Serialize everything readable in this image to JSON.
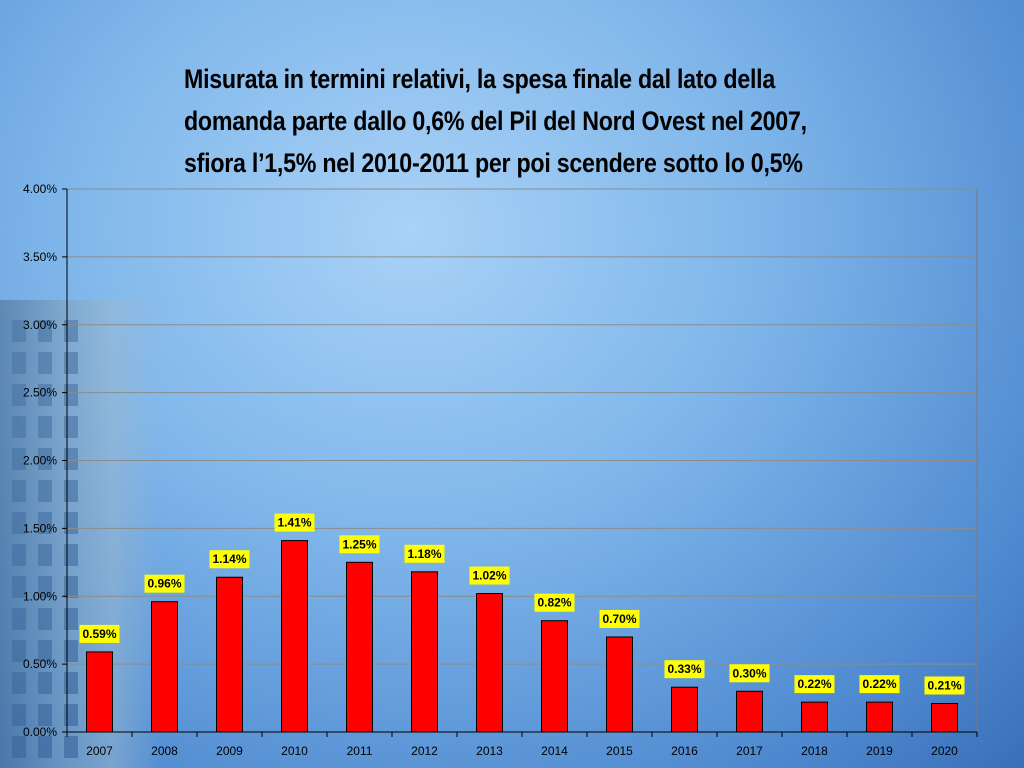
{
  "title_lines": [
    "Misurata in termini relativi, la spesa finale dal lato della",
    "domanda parte dallo 0,6% del Pil del Nord Ovest nel 2007,",
    "sfiora l’1,5% nel 2010-2011 per poi scendere sotto lo 0,5%"
  ],
  "colors": {
    "bar": "#ff0000",
    "label_bg": "#ffff00",
    "grid": "#8c8c8c"
  },
  "chart_data": {
    "type": "bar",
    "title": "Misurata in termini relativi, la spesa finale dal lato della domanda parte dallo 0,6% del Pil del Nord Ovest nel 2007, sfiora l’1,5% nel 2010-2011 per poi scendere sotto lo 0,5%",
    "categories": [
      "2007",
      "2008",
      "2009",
      "2010",
      "2011",
      "2012",
      "2013",
      "2014",
      "2015",
      "2016",
      "2017",
      "2018",
      "2019",
      "2020"
    ],
    "values": [
      0.59,
      0.96,
      1.14,
      1.41,
      1.25,
      1.18,
      1.02,
      0.82,
      0.7,
      0.33,
      0.3,
      0.22,
      0.22,
      0.21
    ],
    "data_labels": [
      "0.59%",
      "0.96%",
      "1.14%",
      "1.41%",
      "1.25%",
      "1.18%",
      "1.02%",
      "0.82%",
      "0.70%",
      "0.33%",
      "0.30%",
      "0.22%",
      "0.22%",
      "0.21%"
    ],
    "yticks": [
      0,
      0.5,
      1,
      1.5,
      2,
      2.5,
      3,
      3.5,
      4
    ],
    "ytick_labels": [
      "0.00%",
      "0.50%",
      "1.00%",
      "1.50%",
      "2.00%",
      "2.50%",
      "3.00%",
      "3.50%",
      "4.00%"
    ],
    "ylim": [
      0,
      4
    ],
    "xlabel": "",
    "ylabel": "",
    "grid": true,
    "legend": "none"
  }
}
